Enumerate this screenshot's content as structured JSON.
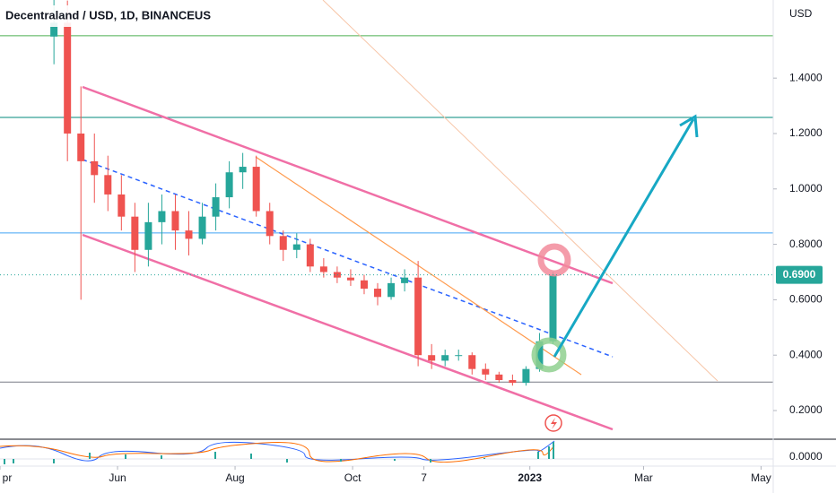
{
  "chart_data": {
    "type": "candlestick",
    "title": "Decentraland / USD, 1D, BINANCEUS",
    "currency": "USD",
    "last_price": {
      "value": 0.69,
      "label": "0.6900"
    },
    "macd_axis_label": "0.0000",
    "x": [
      28,
      35,
      42,
      49,
      56,
      63,
      70,
      77,
      84,
      91,
      98,
      105,
      112,
      119,
      126,
      133,
      140,
      147,
      154,
      161,
      168,
      175,
      182,
      189,
      196,
      203,
      210,
      217,
      224,
      231,
      238,
      245,
      252,
      259,
      266,
      273,
      280,
      287
    ],
    "open": [
      1.55,
      1.6,
      1.2,
      1.1,
      1.05,
      0.98,
      0.9,
      0.78,
      0.88,
      0.92,
      0.85,
      0.82,
      0.9,
      0.97,
      1.06,
      1.08,
      0.92,
      0.83,
      0.78,
      0.8,
      0.72,
      0.7,
      0.68,
      0.67,
      0.64,
      0.61,
      0.66,
      0.68,
      0.4,
      0.38,
      0.4,
      0.4,
      0.35,
      0.33,
      0.31,
      0.3,
      0.35,
      0.45
    ],
    "high": [
      1.7,
      1.68,
      1.37,
      1.2,
      1.12,
      1.05,
      0.95,
      0.95,
      0.98,
      0.98,
      0.92,
      0.95,
      1.02,
      1.1,
      1.13,
      1.12,
      0.95,
      0.85,
      0.84,
      0.82,
      0.75,
      0.72,
      0.71,
      0.69,
      0.66,
      0.68,
      0.71,
      0.74,
      0.44,
      0.42,
      0.42,
      0.41,
      0.37,
      0.34,
      0.33,
      0.36,
      0.48,
      0.7
    ],
    "low": [
      1.45,
      1.1,
      0.6,
      0.95,
      0.92,
      0.85,
      0.7,
      0.72,
      0.8,
      0.78,
      0.76,
      0.8,
      0.85,
      0.93,
      1.0,
      0.9,
      0.8,
      0.74,
      0.75,
      0.7,
      0.68,
      0.66,
      0.65,
      0.62,
      0.58,
      0.6,
      0.63,
      0.36,
      0.35,
      0.36,
      0.38,
      0.33,
      0.31,
      0.3,
      0.29,
      0.29,
      0.34,
      0.44
    ],
    "close": [
      1.6,
      1.2,
      1.1,
      1.05,
      0.98,
      0.9,
      0.78,
      0.88,
      0.92,
      0.85,
      0.82,
      0.9,
      0.97,
      1.06,
      1.08,
      0.92,
      0.83,
      0.78,
      0.8,
      0.72,
      0.7,
      0.68,
      0.67,
      0.64,
      0.61,
      0.66,
      0.68,
      0.4,
      0.38,
      0.4,
      0.4,
      0.35,
      0.33,
      0.31,
      0.3,
      0.35,
      0.45,
      0.69
    ],
    "up_color": "#26a69a",
    "down_color": "#ef5350",
    "levels": [
      {
        "value": 1.553,
        "color": "#4caf50"
      },
      {
        "value": 1.258,
        "color": "#00897b"
      },
      {
        "value": 0.841,
        "color": "#42a5f5"
      },
      {
        "value": 0.303,
        "color": "#787b86"
      }
    ],
    "xlim": [
      0,
      401.3
    ],
    "ylim": [
      0.103,
      1.682
    ],
    "yticks": [
      {
        "value": 0.2,
        "label": "0.2000"
      },
      {
        "value": 0.4,
        "label": "0.4000"
      },
      {
        "value": 0.6,
        "label": "0.6000"
      },
      {
        "value": 0.8,
        "label": "0.8000"
      },
      {
        "value": 1.0,
        "label": "1.0000"
      },
      {
        "value": 1.2,
        "label": "1.2000"
      },
      {
        "value": 1.4,
        "label": "1.4000"
      }
    ],
    "xticks": [
      {
        "value": 0,
        "label": "pr"
      },
      {
        "value": 61,
        "label": "Jun"
      },
      {
        "value": 122,
        "label": "Aug"
      },
      {
        "value": 183,
        "label": "Oct"
      },
      {
        "value": 220,
        "label": "7"
      },
      {
        "value": 275,
        "label": "2023"
      },
      {
        "value": 334,
        "label": "Mar"
      },
      {
        "value": 395,
        "label": "May"
      }
    ]
  }
}
